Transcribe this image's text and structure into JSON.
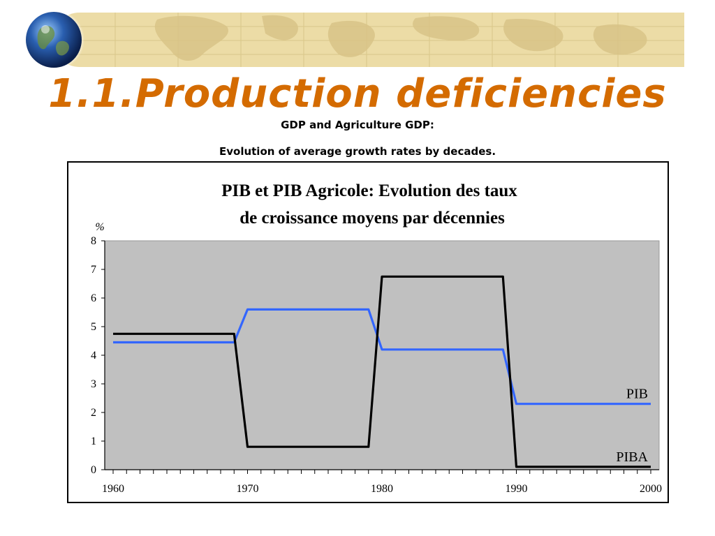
{
  "slide": {
    "title": "1.1.Production deficiencies",
    "subtitle_line1": "GDP and Agriculture GDP:",
    "subtitle_line2": "Evolution of average growth rates by decades."
  },
  "colors": {
    "title": "#d46b00",
    "plot_background": "#c0c0c0",
    "pib_line": "#3366ff",
    "piba_line": "#000000",
    "banner": "#e8d79b"
  },
  "chart_data": {
    "type": "line",
    "title_line1": "PIB et PIB Agricole: Evolution des taux",
    "title_line2": "de croissance moyens par décennies",
    "ylabel": "%",
    "xlabel": "",
    "xlim": [
      1960,
      2000
    ],
    "ylim": [
      0,
      8
    ],
    "x_ticks": [
      "1960",
      "1970",
      "1980",
      "1990",
      "2000"
    ],
    "y_ticks": [
      "0",
      "1",
      "2",
      "3",
      "4",
      "5",
      "6",
      "7",
      "8"
    ],
    "grid": false,
    "series": [
      {
        "name": "PIB",
        "color": "#3366ff",
        "points": [
          [
            1960,
            4.45
          ],
          [
            1969,
            4.45
          ],
          [
            1970,
            5.6
          ],
          [
            1979,
            5.6
          ],
          [
            1980,
            4.2
          ],
          [
            1989,
            4.2
          ],
          [
            1990,
            2.3
          ],
          [
            2000,
            2.3
          ]
        ]
      },
      {
        "name": "PIBA",
        "color": "#000000",
        "points": [
          [
            1960,
            4.75
          ],
          [
            1969,
            4.75
          ],
          [
            1970,
            0.8
          ],
          [
            1979,
            0.8
          ],
          [
            1980,
            6.75
          ],
          [
            1989,
            6.75
          ],
          [
            1990,
            0.1
          ],
          [
            2000,
            0.1
          ]
        ]
      }
    ]
  }
}
